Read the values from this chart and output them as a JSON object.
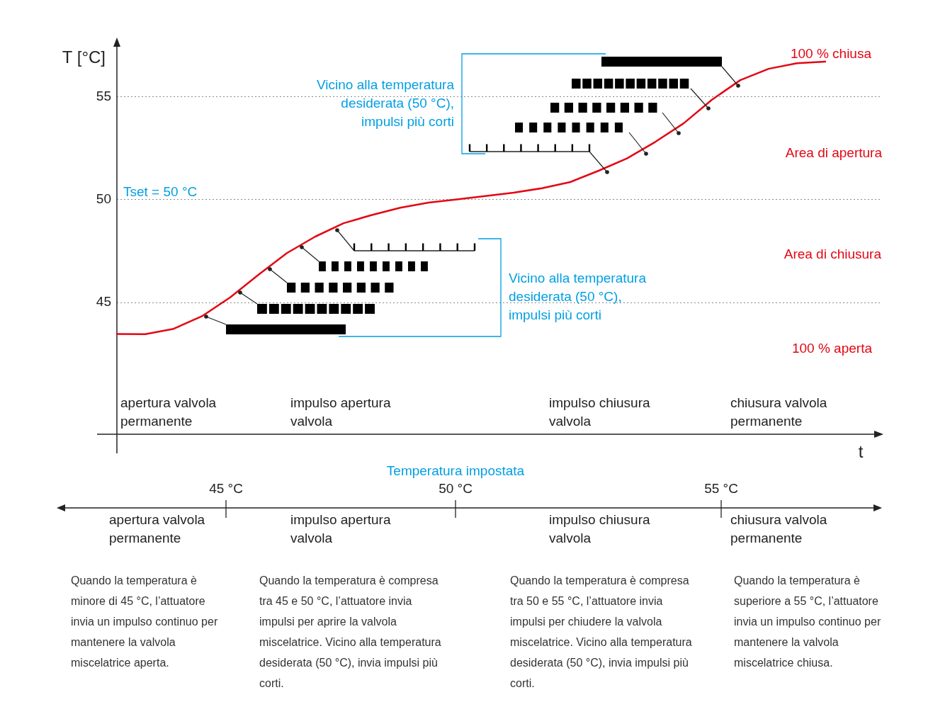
{
  "chart_data": {
    "type": "line",
    "ylabel": "T [°C]",
    "xlabel": "t",
    "categories": [
      null,
      null,
      null,
      null,
      null,
      null,
      null,
      null,
      null,
      null,
      null,
      null,
      null,
      null,
      null,
      null,
      null,
      null,
      null,
      null,
      null,
      null,
      null,
      null,
      null,
      null,
      null,
      null
    ],
    "series": [
      {
        "color": "#e30613",
        "values": [
          43.47,
          43.46,
          43.72,
          44.33,
          45.25,
          46.35,
          47.4,
          48.2,
          48.85,
          49.25,
          49.6,
          49.85,
          50.01,
          50.17,
          50.33,
          50.55,
          50.85,
          51.4,
          52.0,
          52.8,
          53.7,
          54.85,
          55.8,
          56.35,
          56.62,
          56.7,
          null,
          null
        ]
      }
    ],
    "ylim": [
      38.6,
      57.8
    ],
    "yticks": [
      45,
      50,
      55
    ],
    "grid": "y",
    "legend": false,
    "tick_labels": "y",
    "marker": "none",
    "line_style": "solid",
    "annotations": [
      "Tset = 50 °C",
      "100 % chiusa",
      "Area di apertura",
      "Area di chiusura",
      "100 % aperta",
      "Vicino alla temperatura desiderata (50 °C), impulsi più corti",
      "Vicino alla temperatura desiderata (50 °C), impulsi più corti",
      "apertura valvola permanente",
      "impulso apertura valvola",
      "impulso chiusura valvola",
      "chiusura valvola permanente",
      "Temperatura impostata",
      "45 °C",
      "50 °C",
      "55 °C",
      "apertura valvola permanente",
      "impulso apertura valvola",
      "impulso chiusura valvola",
      "chiusura valvola permanente",
      "Quando la temperatura è minore di 45 °C, l’attuatore invia un impulso continuo per mantenere la valvola miscelatrice aperta.",
      "Quando la temperatura è compresa tra 45 e 50 °C, l’attuatore invia impulsi per aprire la valvola miscelatrice. Vicino alla temperatura desiderata (50 °C), invia impulsi più corti.",
      "Quando la temperatura è compresa tra 50 e 55 °C, l’attuatore invia impulsi per chiudere la valvola miscelatrice. Vicino alla temperatura desiderata (50 °C), invia impulsi più corti.",
      "Quando la temperatura è superiore a 55 °C, l’attuatore invia un impulso continuo per mantenere la valvola miscelatrice chiusa."
    ]
  }
}
